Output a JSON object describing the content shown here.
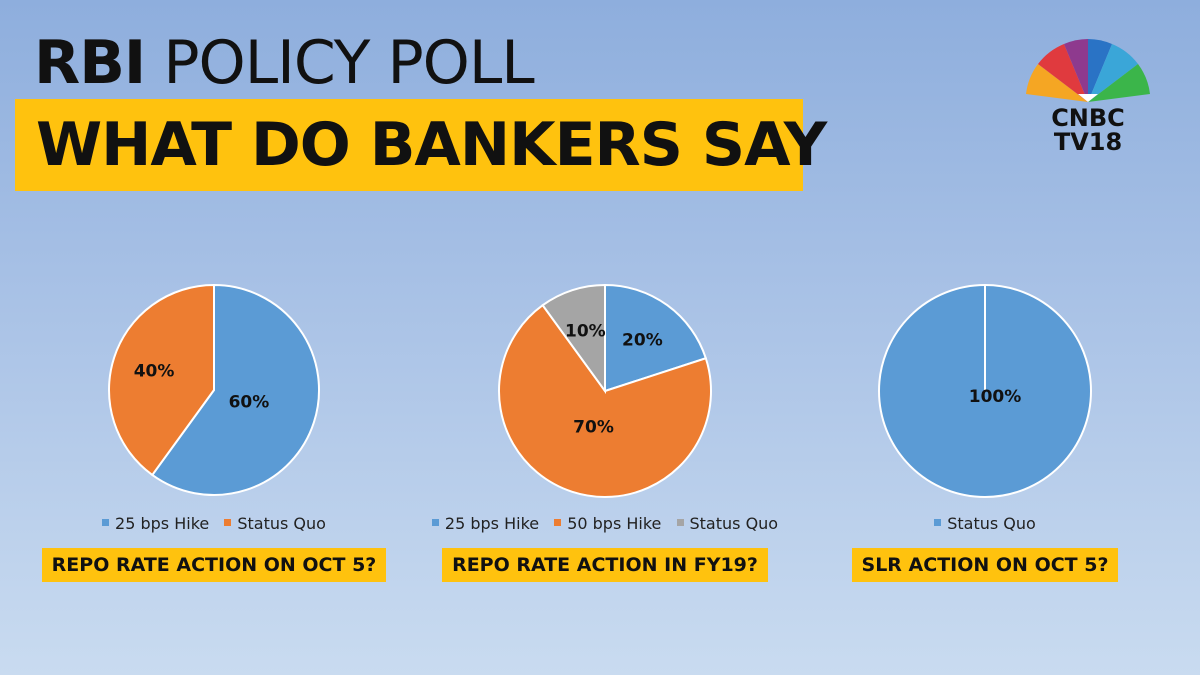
{
  "header": {
    "title_bold": "RBI",
    "title_light": "POLICY POLL",
    "subtitle": "WHAT DO BANKERS SAY"
  },
  "logo": {
    "line1": "CNBC",
    "line2": "TV18"
  },
  "colors": {
    "blue": "#5b9bd5",
    "orange": "#ed7d31",
    "gray": "#a5a5a5",
    "highlight": "#ffc20e"
  },
  "chart_data": [
    {
      "type": "pie",
      "title": "REPO RATE ACTION ON OCT 5?",
      "categories": [
        "25 bps Hike",
        "Status Quo"
      ],
      "values": [
        60,
        40
      ],
      "labels": [
        "60%",
        "40%"
      ],
      "colors": [
        "#5b9bd5",
        "#ed7d31"
      ],
      "legend": "bottom"
    },
    {
      "type": "pie",
      "title": "REPO RATE ACTION IN FY19?",
      "categories": [
        "25 bps Hike",
        "50 bps Hike",
        "Status Quo"
      ],
      "values": [
        20,
        70,
        10
      ],
      "labels": [
        "20%",
        "70%",
        "10%"
      ],
      "colors": [
        "#5b9bd5",
        "#ed7d31",
        "#a5a5a5"
      ],
      "legend": "bottom"
    },
    {
      "type": "pie",
      "title": "SLR ACTION ON OCT 5?",
      "categories": [
        "Status Quo"
      ],
      "values": [
        100
      ],
      "labels": [
        "100%"
      ],
      "colors": [
        "#5b9bd5"
      ],
      "legend": "bottom"
    }
  ]
}
